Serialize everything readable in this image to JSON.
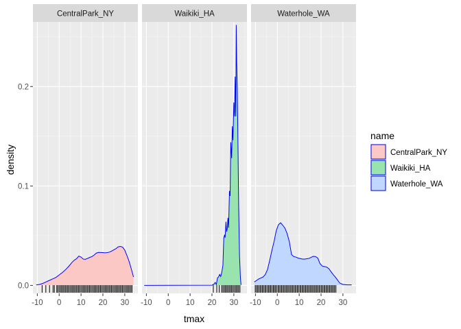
{
  "chart_data": {
    "type": "area",
    "subtype": "faceted density with rug",
    "xlabel": "tmax",
    "ylabel": "density",
    "xlim": [
      -12,
      36
    ],
    "ylim": [
      -0.008,
      0.265
    ],
    "x_ticks": [
      -10,
      0,
      10,
      20,
      30
    ],
    "y_ticks": [
      0.0,
      0.1,
      0.2
    ],
    "y_tick_labels": [
      "0.0",
      "0.1",
      "0.2"
    ],
    "grid": true,
    "outline_color": "#0000ff",
    "legend": {
      "title": "name",
      "placement": "right",
      "entries": [
        "CentralPark_NY",
        "Waikiki_HA",
        "Waterhole_WA"
      ]
    },
    "facets": [
      {
        "name": "CentralPark_NY",
        "fill": "#f8766d",
        "x": [
          -10.5,
          -9,
          -7.5,
          -6,
          -4.5,
          -3,
          -1.5,
          0,
          1.5,
          3,
          4.5,
          6,
          7,
          8,
          9,
          10,
          11,
          12,
          13,
          14,
          15,
          16,
          17,
          18,
          19,
          20,
          21,
          22,
          23,
          24,
          25,
          26,
          27,
          28,
          29,
          30,
          31,
          32,
          33,
          34
        ],
        "y": [
          0.0005,
          0.001,
          0.002,
          0.0035,
          0.005,
          0.0065,
          0.008,
          0.0105,
          0.013,
          0.016,
          0.0195,
          0.0235,
          0.0255,
          0.027,
          0.0295,
          0.0285,
          0.0265,
          0.0262,
          0.0272,
          0.0282,
          0.029,
          0.0305,
          0.0325,
          0.0332,
          0.0331,
          0.033,
          0.0328,
          0.033,
          0.0335,
          0.0345,
          0.0358,
          0.037,
          0.0388,
          0.0392,
          0.0385,
          0.0355,
          0.03,
          0.024,
          0.0165,
          0.0085
        ],
        "rug": [
          -7.8,
          -6.1,
          -4.4,
          -2.8,
          -2.2,
          -1.1,
          -0.6,
          0,
          0.6,
          1.1,
          1.7,
          2.2,
          2.8,
          3.3,
          3.9,
          4.4,
          5,
          5.6,
          6.1,
          6.7,
          7.2,
          7.8,
          8.3,
          8.9,
          9.4,
          10,
          10.6,
          11.1,
          11.7,
          12.2,
          12.8,
          13.3,
          13.9,
          14.4,
          15,
          15.6,
          16.1,
          16.7,
          17.2,
          17.8,
          18.3,
          18.9,
          19.4,
          20,
          20.6,
          21.1,
          21.7,
          22.2,
          22.8,
          23.3,
          23.9,
          24.4,
          25,
          25.6,
          26.1,
          26.7,
          27.2,
          27.8,
          28.3,
          28.9,
          29.4,
          30,
          30.6,
          31.1,
          31.7,
          32.2,
          32.8,
          33.3
        ]
      },
      {
        "name": "Waikiki_HA",
        "fill": "#00ba38",
        "x": [
          -11,
          20,
          21,
          21.5,
          22,
          22.5,
          23,
          23.5,
          24,
          24.5,
          25,
          25.4,
          25.8,
          26,
          26.4,
          26.7,
          27,
          27.3,
          27.6,
          28,
          28.3,
          28.6,
          29,
          29.3,
          29.6,
          30,
          30.3,
          30.6,
          30.9,
          31.1,
          31.3,
          31.6,
          31.9,
          32.2,
          32.6,
          33,
          33.3
        ],
        "y": [
          0,
          0.0002,
          0.0015,
          0.003,
          0.001,
          0.0075,
          0.0085,
          0.011,
          0.009,
          0.0135,
          0.02,
          0.048,
          0.051,
          0.048,
          0.064,
          0.054,
          0.057,
          0.068,
          0.058,
          0.095,
          0.09,
          0.144,
          0.128,
          0.16,
          0.146,
          0.184,
          0.17,
          0.21,
          0.17,
          0.262,
          0.225,
          0.197,
          0.14,
          0.08,
          0.03,
          0.008,
          0.0005
        ],
        "rug": [
          20.6,
          22.2,
          23.3,
          24.4,
          25,
          25.6,
          26.1,
          26.7,
          27.2,
          27.8,
          28.3,
          28.9,
          29.4,
          30,
          30.6,
          31.1,
          31.7,
          32.2,
          32.8
        ]
      },
      {
        "name": "Waterhole_WA",
        "fill": "#619cff",
        "x": [
          -10.5,
          -9.5,
          -8.5,
          -7.5,
          -6.5,
          -5.5,
          -4.5,
          -3.5,
          -2.5,
          -1.5,
          -0.5,
          0.5,
          1.5,
          2.5,
          3.5,
          4.5,
          5.5,
          6.5,
          7.5,
          8.5,
          9.5,
          10.5,
          11.5,
          12.5,
          13.5,
          14.5,
          15.5,
          16.5,
          17.5,
          18.5,
          19.5,
          20.5,
          21.5,
          22.5,
          23.5,
          24.5,
          25.5,
          26.5,
          27.5,
          28.5,
          30,
          32,
          34
        ],
        "y": [
          0.0035,
          0.005,
          0.0065,
          0.0075,
          0.0085,
          0.011,
          0.016,
          0.025,
          0.035,
          0.044,
          0.055,
          0.061,
          0.063,
          0.0605,
          0.0575,
          0.052,
          0.044,
          0.031,
          0.029,
          0.0285,
          0.0275,
          0.027,
          0.0265,
          0.0265,
          0.0268,
          0.0272,
          0.0283,
          0.0292,
          0.029,
          0.0275,
          0.022,
          0.0195,
          0.019,
          0.0185,
          0.017,
          0.014,
          0.011,
          0.0085,
          0.0055,
          0.0025,
          0.001,
          0.0005,
          0.0005
        ],
        "rug": [
          -10.1,
          -9.6,
          -9,
          -8.5,
          -7.9,
          -7.4,
          -6.8,
          -6.3,
          -5.7,
          -5.2,
          -4.6,
          -4,
          -3.5,
          -3,
          -2.4,
          -1.8,
          -1.3,
          -0.8,
          -0.2,
          0.4,
          0.9,
          1.5,
          2,
          2.6,
          3.1,
          3.7,
          4.2,
          4.8,
          5.3,
          5.9,
          6.4,
          7,
          7.5,
          8.1,
          8.6,
          9.2,
          9.7,
          10.3,
          10.8,
          11.4,
          11.9,
          12.5,
          13,
          13.6,
          14.1,
          14.7,
          15.2,
          15.8,
          16.3,
          16.9,
          17.4,
          18,
          18.5,
          19.1,
          19.6,
          20.2,
          20.7,
          21.3,
          21.8,
          22.4,
          22.9,
          23.5,
          24,
          24.6,
          25.1,
          25.7,
          26.2,
          26.8
        ]
      }
    ]
  }
}
